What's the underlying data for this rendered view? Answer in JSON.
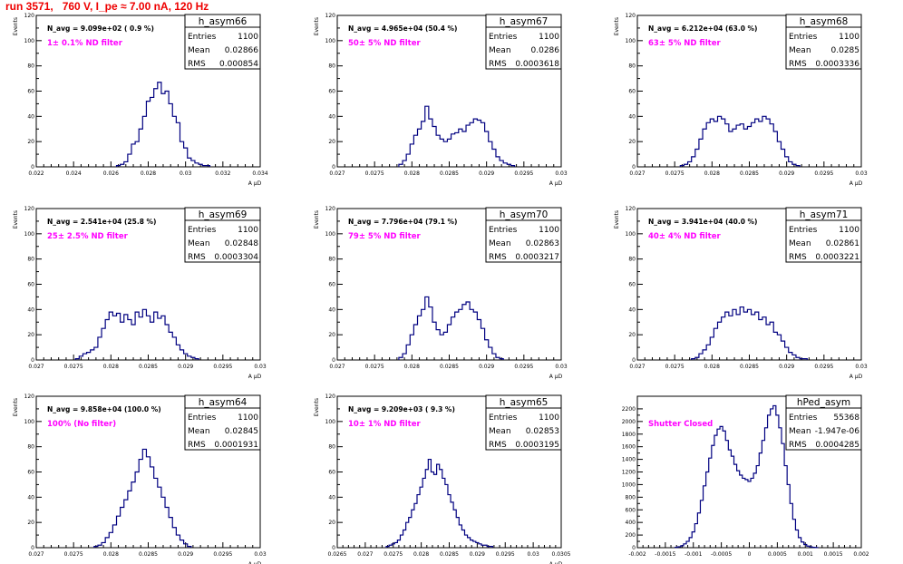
{
  "page_title": "run 3571,   760 V, I_pe ≈ 7.00 nA, 120 Hz",
  "colors": {
    "title": "#ee0000",
    "annotation": "#ff00ff",
    "histogram": "#000080",
    "frame": "#000000"
  },
  "chart_data": [
    {
      "type": "histogram",
      "hist_name": "h_asym66",
      "navg": "N_avg = 9.099e+02 ( 0.9 %)",
      "annotation": "1± 0.1% ND filter",
      "stats": [
        [
          "Entries",
          "1100"
        ],
        [
          "Mean",
          "0.02866"
        ],
        [
          "RMS",
          "0.000854"
        ]
      ],
      "ylabel": "Events",
      "xlabel": "A μD",
      "xlim": [
        0.022,
        0.034
      ],
      "ylim": [
        0,
        120
      ],
      "xticks": [
        0.022,
        0.024,
        0.026,
        0.028,
        0.03,
        0.032,
        0.034
      ],
      "xtick_labels": [
        "0.022",
        "0.024",
        "0.026",
        "0.028",
        "0.03",
        "0.032",
        "0.034"
      ],
      "yticks": [
        0,
        20,
        40,
        60,
        80,
        100,
        120
      ],
      "x": [
        0.0264,
        0.0266,
        0.0268,
        0.027,
        0.0272,
        0.0274,
        0.0276,
        0.0278,
        0.028,
        0.0282,
        0.0284,
        0.0286,
        0.0288,
        0.029,
        0.0292,
        0.0294,
        0.0296,
        0.0298,
        0.03,
        0.0302,
        0.0304,
        0.0306,
        0.0308,
        0.031,
        0.0312
      ],
      "counts": [
        1,
        2,
        4,
        10,
        18,
        20,
        30,
        40,
        52,
        55,
        62,
        67,
        58,
        60,
        50,
        40,
        35,
        20,
        15,
        7,
        5,
        3,
        2,
        1,
        1
      ]
    },
    {
      "type": "histogram",
      "hist_name": "h_asym67",
      "navg": "N_avg = 4.965e+04 (50.4 %)",
      "annotation": "50± 5% ND filter",
      "stats": [
        [
          "Entries",
          "1100"
        ],
        [
          "Mean",
          "0.0286"
        ],
        [
          "RMS",
          "0.0003618"
        ]
      ],
      "ylabel": "Events",
      "xlabel": "A μD",
      "xlim": [
        0.027,
        0.03
      ],
      "ylim": [
        0,
        120
      ],
      "xticks": [
        0.027,
        0.0275,
        0.028,
        0.0285,
        0.029,
        0.0295,
        0.03
      ],
      "xtick_labels": [
        "0.027",
        "0.0275",
        "0.028",
        "0.0285",
        "0.029",
        "0.0295",
        "0.03"
      ],
      "yticks": [
        0,
        20,
        40,
        60,
        80,
        100,
        120
      ],
      "x": [
        0.02785,
        0.0279,
        0.02795,
        0.028,
        0.02805,
        0.0281,
        0.02815,
        0.0282,
        0.02825,
        0.0283,
        0.02835,
        0.0284,
        0.02845,
        0.0285,
        0.02855,
        0.0286,
        0.02865,
        0.0287,
        0.02875,
        0.0288,
        0.02885,
        0.0289,
        0.02895,
        0.029,
        0.02905,
        0.0291,
        0.02915,
        0.0292,
        0.02925,
        0.0293,
        0.02935
      ],
      "counts": [
        2,
        5,
        10,
        18,
        25,
        30,
        36,
        48,
        38,
        32,
        25,
        22,
        20,
        22,
        26,
        27,
        30,
        28,
        33,
        35,
        38,
        37,
        35,
        28,
        20,
        14,
        8,
        5,
        3,
        2,
        1
      ]
    },
    {
      "type": "histogram",
      "hist_name": "h_asym68",
      "navg": "N_avg = 6.212e+04 (63.0 %)",
      "annotation": "63± 5% ND filter",
      "stats": [
        [
          "Entries",
          "1100"
        ],
        [
          "Mean",
          "0.0285"
        ],
        [
          "RMS",
          "0.0003336"
        ]
      ],
      "ylabel": "Events",
      "xlabel": "A μD",
      "xlim": [
        0.027,
        0.03
      ],
      "ylim": [
        0,
        120
      ],
      "xticks": [
        0.027,
        0.0275,
        0.028,
        0.0285,
        0.029,
        0.0295,
        0.03
      ],
      "xtick_labels": [
        "0.027",
        "0.0275",
        "0.028",
        "0.0285",
        "0.029",
        "0.0295",
        "0.03"
      ],
      "yticks": [
        0,
        20,
        40,
        60,
        80,
        100,
        120
      ],
      "x": [
        0.0276,
        0.02765,
        0.0277,
        0.02775,
        0.0278,
        0.02785,
        0.0279,
        0.02795,
        0.028,
        0.02805,
        0.0281,
        0.02815,
        0.0282,
        0.02825,
        0.0283,
        0.02835,
        0.0284,
        0.02845,
        0.0285,
        0.02855,
        0.0286,
        0.02865,
        0.0287,
        0.02875,
        0.0288,
        0.02885,
        0.0289,
        0.02895,
        0.029,
        0.02905,
        0.0291,
        0.02915
      ],
      "counts": [
        1,
        2,
        4,
        8,
        14,
        22,
        30,
        35,
        38,
        36,
        40,
        38,
        34,
        28,
        30,
        33,
        34,
        30,
        32,
        35,
        38,
        36,
        40,
        38,
        34,
        28,
        20,
        14,
        8,
        4,
        2,
        1
      ]
    },
    {
      "type": "histogram",
      "hist_name": "h_asym69",
      "navg": "N_avg = 2.541e+04 (25.8 %)",
      "annotation": "25± 2.5% ND filter",
      "stats": [
        [
          "Entries",
          "1100"
        ],
        [
          "Mean",
          "0.02848"
        ],
        [
          "RMS",
          "0.0003304"
        ]
      ],
      "ylabel": "Events",
      "xlabel": "A μD",
      "xlim": [
        0.027,
        0.03
      ],
      "ylim": [
        0,
        120
      ],
      "xticks": [
        0.027,
        0.0275,
        0.028,
        0.0285,
        0.029,
        0.0295,
        0.03
      ],
      "xtick_labels": [
        "0.027",
        "0.0275",
        "0.028",
        "0.0285",
        "0.029",
        "0.0295",
        "0.03"
      ],
      "yticks": [
        0,
        20,
        40,
        60,
        80,
        100,
        120
      ],
      "x": [
        0.02755,
        0.0276,
        0.02765,
        0.0277,
        0.02775,
        0.0278,
        0.02785,
        0.0279,
        0.02795,
        0.028,
        0.02805,
        0.0281,
        0.02815,
        0.0282,
        0.02825,
        0.0283,
        0.02835,
        0.0284,
        0.02845,
        0.0285,
        0.02855,
        0.0286,
        0.02865,
        0.0287,
        0.02875,
        0.0288,
        0.02885,
        0.0289,
        0.02895,
        0.029,
        0.02905,
        0.0291,
        0.02915
      ],
      "counts": [
        1,
        3,
        5,
        6,
        8,
        10,
        18,
        25,
        32,
        38,
        35,
        37,
        30,
        36,
        32,
        28,
        38,
        34,
        40,
        35,
        30,
        38,
        33,
        35,
        28,
        22,
        18,
        12,
        8,
        5,
        3,
        2,
        1
      ]
    },
    {
      "type": "histogram",
      "hist_name": "h_asym70",
      "navg": "N_avg = 7.796e+04 (79.1 %)",
      "annotation": "79± 5% ND filter",
      "stats": [
        [
          "Entries",
          "1100"
        ],
        [
          "Mean",
          "0.02863"
        ],
        [
          "RMS",
          "0.0003217"
        ]
      ],
      "ylabel": "Events",
      "xlabel": "A μD",
      "xlim": [
        0.027,
        0.03
      ],
      "ylim": [
        0,
        120
      ],
      "xticks": [
        0.027,
        0.0275,
        0.028,
        0.0285,
        0.029,
        0.0295,
        0.03
      ],
      "xtick_labels": [
        "0.027",
        "0.0275",
        "0.028",
        "0.0285",
        "0.029",
        "0.0295",
        "0.03"
      ],
      "yticks": [
        0,
        20,
        40,
        60,
        80,
        100,
        120
      ],
      "x": [
        0.02785,
        0.0279,
        0.02795,
        0.028,
        0.02805,
        0.0281,
        0.02815,
        0.0282,
        0.02825,
        0.0283,
        0.02835,
        0.0284,
        0.02845,
        0.0285,
        0.02855,
        0.0286,
        0.02865,
        0.0287,
        0.02875,
        0.0288,
        0.02885,
        0.0289,
        0.02895,
        0.029,
        0.02905,
        0.0291,
        0.02915,
        0.0292
      ],
      "counts": [
        2,
        5,
        12,
        20,
        28,
        35,
        40,
        50,
        42,
        30,
        24,
        20,
        22,
        28,
        34,
        38,
        40,
        44,
        46,
        40,
        38,
        32,
        25,
        16,
        10,
        5,
        2,
        1
      ]
    },
    {
      "type": "histogram",
      "hist_name": "h_asym71",
      "navg": "N_avg = 3.941e+04 (40.0 %)",
      "annotation": "40± 4% ND filter",
      "stats": [
        [
          "Entries",
          "1100"
        ],
        [
          "Mean",
          "0.02861"
        ],
        [
          "RMS",
          "0.0003221"
        ]
      ],
      "ylabel": "Events",
      "xlabel": "A μD",
      "xlim": [
        0.027,
        0.03
      ],
      "ylim": [
        0,
        120
      ],
      "xticks": [
        0.027,
        0.0275,
        0.028,
        0.0285,
        0.029,
        0.0295,
        0.03
      ],
      "xtick_labels": [
        "0.027",
        "0.0275",
        "0.028",
        "0.0285",
        "0.029",
        "0.0295",
        "0.03"
      ],
      "yticks": [
        0,
        20,
        40,
        60,
        80,
        100,
        120
      ],
      "x": [
        0.02775,
        0.0278,
        0.02785,
        0.0279,
        0.02795,
        0.028,
        0.02805,
        0.0281,
        0.02815,
        0.0282,
        0.02825,
        0.0283,
        0.02835,
        0.0284,
        0.02845,
        0.0285,
        0.02855,
        0.0286,
        0.02865,
        0.0287,
        0.02875,
        0.0288,
        0.02885,
        0.0289,
        0.02895,
        0.029,
        0.02905,
        0.0291,
        0.02915,
        0.0292,
        0.02925
      ],
      "counts": [
        1,
        2,
        5,
        8,
        12,
        18,
        25,
        30,
        34,
        38,
        35,
        40,
        36,
        42,
        38,
        40,
        36,
        38,
        32,
        34,
        28,
        30,
        22,
        20,
        15,
        10,
        6,
        4,
        2,
        1,
        1
      ]
    },
    {
      "type": "histogram",
      "hist_name": "h_asym64",
      "navg": "N_avg = 9.858e+04 (100.0 %)",
      "annotation": "100% (No filter)",
      "stats": [
        [
          "Entries",
          "1100"
        ],
        [
          "Mean",
          "0.02845"
        ],
        [
          "RMS",
          "0.0001931"
        ]
      ],
      "ylabel": "Events",
      "xlabel": "A μD",
      "xlim": [
        0.027,
        0.03
      ],
      "ylim": [
        0,
        120
      ],
      "xticks": [
        0.027,
        0.0275,
        0.028,
        0.0285,
        0.029,
        0.0295,
        0.03
      ],
      "xtick_labels": [
        "0.027",
        "0.0275",
        "0.028",
        "0.0285",
        "0.029",
        "0.0295",
        "0.03"
      ],
      "yticks": [
        0,
        20,
        40,
        60,
        80,
        100,
        120
      ],
      "x": [
        0.0278,
        0.02785,
        0.0279,
        0.02795,
        0.028,
        0.02805,
        0.0281,
        0.02815,
        0.0282,
        0.02825,
        0.0283,
        0.02835,
        0.0284,
        0.02845,
        0.0285,
        0.02855,
        0.0286,
        0.02865,
        0.0287,
        0.02875,
        0.0288,
        0.02885,
        0.0289,
        0.02895,
        0.029,
        0.02905
      ],
      "counts": [
        1,
        2,
        4,
        8,
        12,
        18,
        25,
        32,
        38,
        45,
        52,
        60,
        70,
        78,
        72,
        64,
        55,
        48,
        40,
        32,
        24,
        16,
        10,
        6,
        3,
        1
      ]
    },
    {
      "type": "histogram",
      "hist_name": "h_asym65",
      "navg": "N_avg = 9.209e+03 ( 9.3 %)",
      "annotation": "10± 1% ND filter",
      "stats": [
        [
          "Entries",
          "1100"
        ],
        [
          "Mean",
          "0.02853"
        ],
        [
          "RMS",
          "0.0003195"
        ]
      ],
      "ylabel": "Events",
      "xlabel": "A μD",
      "xlim": [
        0.0265,
        0.0305
      ],
      "ylim": [
        0,
        120
      ],
      "xticks": [
        0.0265,
        0.027,
        0.0275,
        0.028,
        0.0285,
        0.029,
        0.0295,
        0.03,
        0.0305
      ],
      "xtick_labels": [
        "0.0265",
        "0.027",
        "0.0275",
        "0.028",
        "0.0285",
        "0.029",
        "0.0295",
        "0.03",
        "0.0305"
      ],
      "yticks": [
        0,
        20,
        40,
        60,
        80,
        100,
        120
      ],
      "x": [
        0.0274,
        0.02745,
        0.0275,
        0.02755,
        0.0276,
        0.02765,
        0.0277,
        0.02775,
        0.0278,
        0.02785,
        0.0279,
        0.02795,
        0.028,
        0.02805,
        0.0281,
        0.02815,
        0.0282,
        0.02825,
        0.0283,
        0.02835,
        0.0284,
        0.02845,
        0.0285,
        0.02855,
        0.0286,
        0.02865,
        0.0287,
        0.02875,
        0.0288,
        0.02885,
        0.0289,
        0.02895,
        0.029,
        0.02905,
        0.0291,
        0.02915,
        0.0292,
        0.02925
      ],
      "counts": [
        1,
        2,
        3,
        4,
        6,
        10,
        14,
        20,
        24,
        30,
        35,
        42,
        48,
        55,
        62,
        70,
        60,
        58,
        66,
        62,
        55,
        50,
        42,
        36,
        30,
        24,
        18,
        14,
        10,
        8,
        6,
        5,
        4,
        3,
        2,
        2,
        1,
        1
      ]
    },
    {
      "type": "histogram",
      "hist_name": "hPed_asym",
      "navg": "",
      "annotation": "Shutter Closed",
      "stats": [
        [
          "Entries",
          "55368"
        ],
        [
          "Mean",
          "-1.947e-06"
        ],
        [
          "RMS",
          "0.0004285"
        ]
      ],
      "ylabel": "",
      "xlabel": "",
      "xlim": [
        -0.002,
        0.002
      ],
      "ylim": [
        0,
        2400
      ],
      "xticks": [
        -0.002,
        -0.0015,
        -0.001,
        -0.0005,
        0,
        0.0005,
        0.001,
        0.0015,
        0.002
      ],
      "xtick_labels": [
        "-0.002",
        "-0.0015",
        "-0.001",
        "-0.0005",
        "0",
        "0.0005",
        "0.001",
        "0.0015",
        "0.002"
      ],
      "yticks": [
        0,
        200,
        400,
        600,
        800,
        1000,
        1200,
        1400,
        1600,
        1800,
        2000,
        2200
      ],
      "x": [
        -0.0013,
        -0.00125,
        -0.0012,
        -0.00115,
        -0.0011,
        -0.00105,
        -0.001,
        -0.00095,
        -0.0009,
        -0.00085,
        -0.0008,
        -0.00075,
        -0.0007,
        -0.00065,
        -0.0006,
        -0.00055,
        -0.0005,
        -0.00045,
        -0.0004,
        -0.00035,
        -0.0003,
        -0.00025,
        -0.0002,
        -0.00015,
        -0.0001,
        -5e-05,
        0,
        5e-05,
        0.0001,
        0.00015,
        0.0002,
        0.00025,
        0.0003,
        0.00035,
        0.0004,
        0.00045,
        0.0005,
        0.00055,
        0.0006,
        0.00065,
        0.0007,
        0.00075,
        0.0008,
        0.00085,
        0.0009,
        0.00095,
        0.001,
        0.00105,
        0.0011,
        0.00115,
        0.0012
      ],
      "counts": [
        5,
        15,
        30,
        60,
        100,
        160,
        250,
        380,
        550,
        750,
        980,
        1200,
        1420,
        1620,
        1780,
        1880,
        1920,
        1850,
        1700,
        1550,
        1450,
        1320,
        1220,
        1150,
        1100,
        1080,
        1050,
        1100,
        1180,
        1300,
        1500,
        1700,
        1900,
        2100,
        2200,
        2250,
        2100,
        1900,
        1650,
        1300,
        1000,
        700,
        450,
        280,
        160,
        90,
        50,
        25,
        12,
        6,
        2
      ]
    }
  ]
}
